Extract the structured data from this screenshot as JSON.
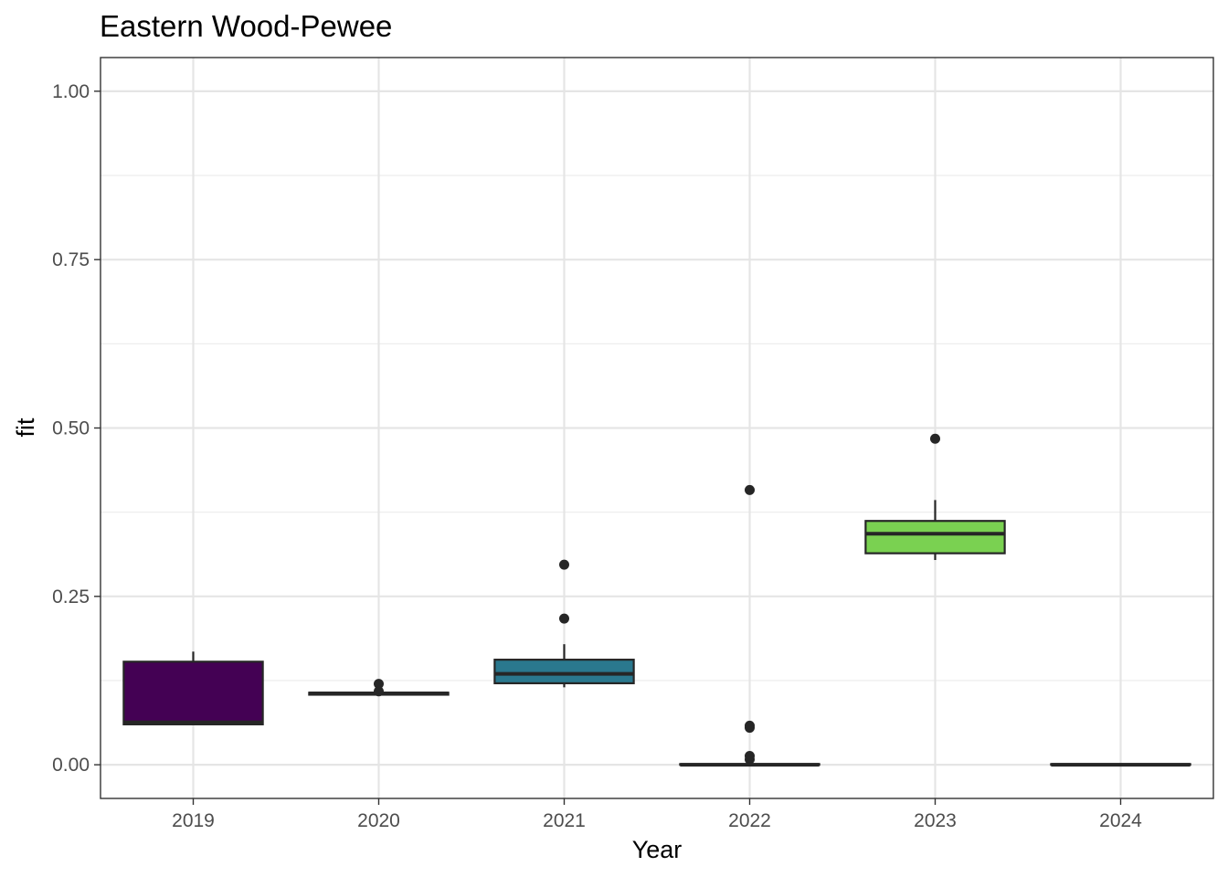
{
  "chart_data": {
    "type": "boxplot",
    "title": "Eastern Wood-Pewee",
    "xlabel": "Year",
    "ylabel": "fit",
    "ylim": [
      -0.05,
      1.05
    ],
    "yticks": [
      "0.00",
      "0.25",
      "0.50",
      "0.75",
      "1.00"
    ],
    "categories": [
      "2019",
      "2020",
      "2021",
      "2022",
      "2023",
      "2024"
    ],
    "grid": true,
    "legend": "none",
    "boxes": [
      {
        "category": "2019",
        "min": 0.06,
        "q1": 0.06,
        "median": 0.063,
        "q3": 0.153,
        "max": 0.168,
        "outliers": [],
        "color": "#440154"
      },
      {
        "category": "2020",
        "min": 0.104,
        "q1": 0.104,
        "median": 0.106,
        "q3": 0.107,
        "max": 0.107,
        "outliers": [
          0.109,
          0.12
        ],
        "color": "#414487"
      },
      {
        "category": "2021",
        "min": 0.115,
        "q1": 0.121,
        "median": 0.135,
        "q3": 0.156,
        "max": 0.179,
        "outliers": [
          0.217,
          0.297
        ],
        "color": "#2a788e"
      },
      {
        "category": "2022",
        "min": 0.0,
        "q1": 0.0,
        "median": 0.0,
        "q3": 0.001,
        "max": 0.002,
        "outliers": [
          0.008,
          0.013,
          0.055,
          0.058,
          0.408
        ],
        "color": "#22a884"
      },
      {
        "category": "2023",
        "min": 0.304,
        "q1": 0.314,
        "median": 0.343,
        "q3": 0.362,
        "max": 0.393,
        "outliers": [
          0.484
        ],
        "color": "#7ad151"
      },
      {
        "category": "2024",
        "min": 0.0,
        "q1": 0.0,
        "median": 0.0,
        "q3": 0.001,
        "max": 0.001,
        "outliers": [],
        "color": "#fde725"
      }
    ]
  }
}
